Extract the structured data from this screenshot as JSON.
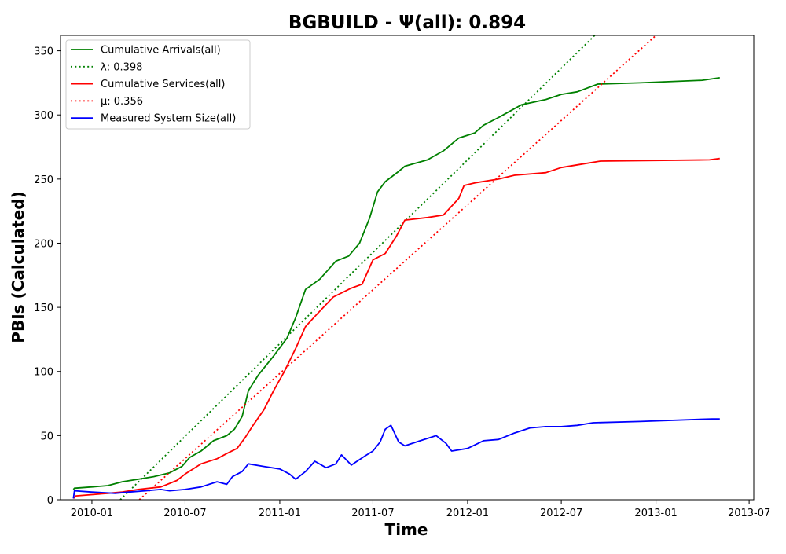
{
  "chart_data": {
    "type": "line",
    "title": "BGBUILD -  Ψ(all): 0.894",
    "xlabel": "Time",
    "ylabel": "PBIs (Calculated)",
    "xlim": [
      "2009-11-01",
      "2013-07-10"
    ],
    "ylim": [
      0,
      362
    ],
    "x_ticks": [
      "2010-01",
      "2010-07",
      "2011-01",
      "2011-07",
      "2012-01",
      "2012-07",
      "2013-01",
      "2013-07"
    ],
    "y_ticks": [
      0,
      50,
      100,
      150,
      200,
      250,
      300,
      350
    ],
    "grid": false,
    "legend_position": "top-left",
    "series": [
      {
        "name": "Cumulative Arrivals(all)",
        "color": "#008000",
        "style": "solid",
        "points": [
          [
            "2009-11-26",
            8
          ],
          [
            "2009-11-28",
            9
          ],
          [
            "2010-01-01",
            10
          ],
          [
            "2010-02-01",
            11
          ],
          [
            "2010-03-01",
            14
          ],
          [
            "2010-04-01",
            16
          ],
          [
            "2010-05-01",
            18
          ],
          [
            "2010-06-01",
            21
          ],
          [
            "2010-06-25",
            26
          ],
          [
            "2010-07-10",
            33
          ],
          [
            "2010-08-01",
            38
          ],
          [
            "2010-08-25",
            46
          ],
          [
            "2010-09-20",
            50
          ],
          [
            "2010-10-05",
            55
          ],
          [
            "2010-10-20",
            65
          ],
          [
            "2010-11-01",
            85
          ],
          [
            "2010-11-20",
            97
          ],
          [
            "2010-12-20",
            112
          ],
          [
            "2011-01-15",
            126
          ],
          [
            "2011-02-01",
            142
          ],
          [
            "2011-02-20",
            164
          ],
          [
            "2011-03-20",
            172
          ],
          [
            "2011-04-20",
            186
          ],
          [
            "2011-05-15",
            190
          ],
          [
            "2011-06-05",
            200
          ],
          [
            "2011-06-25",
            220
          ],
          [
            "2011-07-10",
            240
          ],
          [
            "2011-07-25",
            248
          ],
          [
            "2011-08-20",
            256
          ],
          [
            "2011-09-01",
            260
          ],
          [
            "2011-10-15",
            265
          ],
          [
            "2011-11-15",
            272
          ],
          [
            "2011-12-15",
            282
          ],
          [
            "2012-01-15",
            286
          ],
          [
            "2012-02-01",
            292
          ],
          [
            "2012-03-01",
            298
          ],
          [
            "2012-04-15",
            308
          ],
          [
            "2012-06-01",
            312
          ],
          [
            "2012-07-01",
            316
          ],
          [
            "2012-08-01",
            318
          ],
          [
            "2012-09-10",
            324
          ],
          [
            "2012-12-01",
            325
          ],
          [
            "2013-04-01",
            327
          ],
          [
            "2013-05-05",
            329
          ]
        ]
      },
      {
        "name": "λ: 0.398",
        "color": "#008000",
        "style": "dotted",
        "points": [
          [
            "2010-02-25",
            0
          ],
          [
            "2012-09-04",
            362
          ]
        ]
      },
      {
        "name": "Cumulative Services(all)",
        "color": "#ff0000",
        "style": "solid",
        "points": [
          [
            "2009-11-26",
            1
          ],
          [
            "2009-12-01",
            3
          ],
          [
            "2010-01-01",
            4
          ],
          [
            "2010-02-01",
            5
          ],
          [
            "2010-03-01",
            6
          ],
          [
            "2010-04-01",
            8
          ],
          [
            "2010-05-15",
            10
          ],
          [
            "2010-06-15",
            15
          ],
          [
            "2010-07-01",
            20
          ],
          [
            "2010-08-01",
            28
          ],
          [
            "2010-09-01",
            32
          ],
          [
            "2010-09-20",
            36
          ],
          [
            "2010-10-10",
            40
          ],
          [
            "2010-10-25",
            48
          ],
          [
            "2010-11-10",
            58
          ],
          [
            "2010-12-01",
            70
          ],
          [
            "2010-12-20",
            85
          ],
          [
            "2011-01-10",
            100
          ],
          [
            "2011-02-01",
            118
          ],
          [
            "2011-02-20",
            135
          ],
          [
            "2011-03-15",
            145
          ],
          [
            "2011-04-15",
            158
          ],
          [
            "2011-05-20",
            165
          ],
          [
            "2011-06-10",
            168
          ],
          [
            "2011-07-01",
            187
          ],
          [
            "2011-07-25",
            192
          ],
          [
            "2011-08-15",
            205
          ],
          [
            "2011-09-01",
            218
          ],
          [
            "2011-10-15",
            220
          ],
          [
            "2011-11-15",
            222
          ],
          [
            "2011-12-15",
            235
          ],
          [
            "2011-12-25",
            245
          ],
          [
            "2012-01-15",
            247
          ],
          [
            "2012-03-01",
            250
          ],
          [
            "2012-04-01",
            253
          ],
          [
            "2012-06-01",
            255
          ],
          [
            "2012-07-01",
            259
          ],
          [
            "2012-08-15",
            262
          ],
          [
            "2012-09-15",
            264
          ],
          [
            "2013-04-15",
            265
          ],
          [
            "2013-05-05",
            266
          ]
        ]
      },
      {
        "name": "μ: 0.356",
        "color": "#ff0000",
        "style": "dotted",
        "points": [
          [
            "2010-04-03",
            0
          ],
          [
            "2013-01-01",
            362
          ]
        ]
      },
      {
        "name": "Measured System Size(all)",
        "color": "#0000ff",
        "style": "solid",
        "points": [
          [
            "2009-11-26",
            1
          ],
          [
            "2009-11-28",
            7
          ],
          [
            "2010-01-01",
            6
          ],
          [
            "2010-02-15",
            5
          ],
          [
            "2010-03-15",
            6
          ],
          [
            "2010-04-15",
            7
          ],
          [
            "2010-05-15",
            8
          ],
          [
            "2010-06-01",
            7
          ],
          [
            "2010-07-01",
            8
          ],
          [
            "2010-08-01",
            10
          ],
          [
            "2010-09-01",
            14
          ],
          [
            "2010-09-20",
            12
          ],
          [
            "2010-10-01",
            18
          ],
          [
            "2010-10-20",
            22
          ],
          [
            "2010-11-01",
            28
          ],
          [
            "2010-12-01",
            26
          ],
          [
            "2011-01-01",
            24
          ],
          [
            "2011-01-20",
            20
          ],
          [
            "2011-02-01",
            16
          ],
          [
            "2011-02-20",
            22
          ],
          [
            "2011-03-10",
            30
          ],
          [
            "2011-04-01",
            25
          ],
          [
            "2011-04-20",
            28
          ],
          [
            "2011-05-01",
            35
          ],
          [
            "2011-05-20",
            27
          ],
          [
            "2011-06-15",
            34
          ],
          [
            "2011-07-01",
            38
          ],
          [
            "2011-07-15",
            45
          ],
          [
            "2011-07-25",
            55
          ],
          [
            "2011-08-05",
            58
          ],
          [
            "2011-08-20",
            45
          ],
          [
            "2011-09-01",
            42
          ],
          [
            "2011-10-01",
            46
          ],
          [
            "2011-11-01",
            50
          ],
          [
            "2011-11-20",
            44
          ],
          [
            "2011-12-01",
            38
          ],
          [
            "2012-01-01",
            40
          ],
          [
            "2012-02-01",
            46
          ],
          [
            "2012-03-01",
            47
          ],
          [
            "2012-04-01",
            52
          ],
          [
            "2012-05-01",
            56
          ],
          [
            "2012-06-01",
            57
          ],
          [
            "2012-07-01",
            57
          ],
          [
            "2012-08-01",
            58
          ],
          [
            "2012-09-01",
            60
          ],
          [
            "2012-12-01",
            61
          ],
          [
            "2013-04-20",
            63
          ],
          [
            "2013-05-05",
            63
          ]
        ]
      }
    ]
  }
}
